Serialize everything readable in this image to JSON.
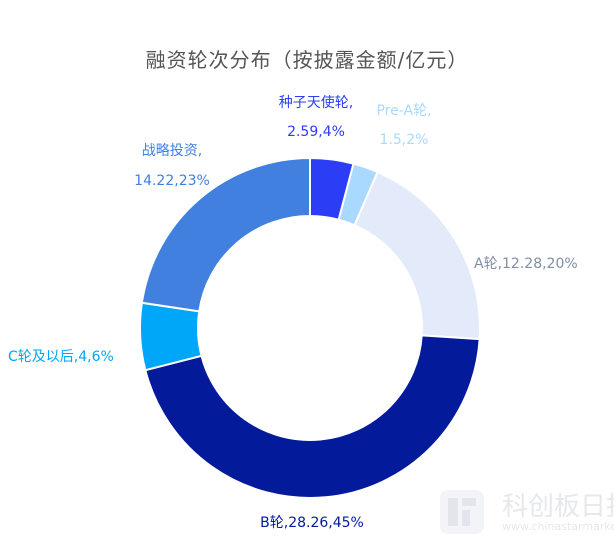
{
  "chart_data": {
    "type": "donut",
    "title": "融资轮次分布（按披露金额/亿元）",
    "unit": "亿元",
    "slices": [
      {
        "name": "种子天使轮",
        "value": 2.59,
        "percent": "4%",
        "label_line1": "种子天使轮,",
        "label_line2": "2.59,4%",
        "color": "#2b3df5",
        "label_color": "#2b3df5"
      },
      {
        "name": "Pre-A轮",
        "value": 1.5,
        "percent": "2%",
        "label_line1": "Pre-A轮,",
        "label_line2": "1.5,2%",
        "color": "#a9d9ff",
        "label_color": "#a9d9ff"
      },
      {
        "name": "A轮",
        "value": 12.28,
        "percent": "20%",
        "label_line1": "A轮,12.28,20%",
        "label_line2": "",
        "color": "#e3ebfa",
        "label_color": "#7f8fa6"
      },
      {
        "name": "B轮",
        "value": 28.26,
        "percent": "45%",
        "label_line1": "B轮,28.26,45%",
        "label_line2": "",
        "color": "#031a9a",
        "label_color": "#031a9a"
      },
      {
        "name": "C轮及以后",
        "value": 4,
        "percent": "6%",
        "label_line1": "C轮及以后,4,6%",
        "label_line2": "",
        "color": "#00a6f7",
        "label_color": "#00a6f7"
      },
      {
        "name": "战略投资",
        "value": 14.22,
        "percent": "23%",
        "label_line1": "战略投资,",
        "label_line2": "14.22,23%",
        "color": "#4180df",
        "label_color": "#4180df"
      }
    ]
  },
  "watermark": {
    "text": "科创板日报",
    "url": "www.chinastarmarket.cn"
  }
}
